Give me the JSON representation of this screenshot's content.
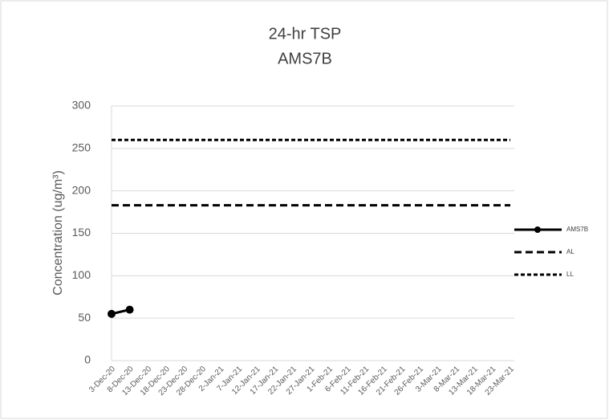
{
  "chart_data": {
    "type": "line",
    "title": "24-hr TSP",
    "subtitle": "AMS7B",
    "y_label": "Concentration (ug/m³)",
    "categories": [
      "3-Dec-20",
      "8-Dec-20",
      "13-Dec-20",
      "18-Dec-20",
      "23-Dec-20",
      "28-Dec-20",
      "2-Jan-21",
      "7-Jan-21",
      "12-Jan-21",
      "17-Jan-21",
      "22-Jan-21",
      "27-Jan-21",
      "1-Feb-21",
      "6-Feb-21",
      "11-Feb-21",
      "16-Feb-21",
      "21-Feb-21",
      "26-Feb-21",
      "3-Mar-21",
      "8-Mar-21",
      "13-Mar-21",
      "18-Mar-21",
      "23-Mar-21"
    ],
    "series": [
      {
        "name": "AMS7B",
        "color": "#000000",
        "line_style": "solid",
        "marker": true,
        "values": [
          55,
          60,
          null,
          null,
          null,
          null,
          null,
          null,
          null,
          null,
          null,
          null,
          null,
          null,
          null,
          null,
          null,
          null,
          null,
          null,
          null,
          null,
          null
        ]
      },
      {
        "name": "AL",
        "color": "#000000",
        "line_style": "dashed",
        "marker": false,
        "values": [
          183,
          183,
          183,
          183,
          183,
          183,
          183,
          183,
          183,
          183,
          183,
          183,
          183,
          183,
          183,
          183,
          183,
          183,
          183,
          183,
          183,
          183,
          183
        ]
      },
      {
        "name": "LL",
        "color": "#000000",
        "line_style": "dotted",
        "marker": false,
        "values": [
          260,
          260,
          260,
          260,
          260,
          260,
          260,
          260,
          260,
          260,
          260,
          260,
          260,
          260,
          260,
          260,
          260,
          260,
          260,
          260,
          260,
          260,
          260
        ]
      }
    ],
    "ylim": [
      0,
      300
    ],
    "yticks": [
      0,
      50,
      100,
      150,
      200,
      250,
      300
    ],
    "grid": true,
    "legend": "right"
  }
}
